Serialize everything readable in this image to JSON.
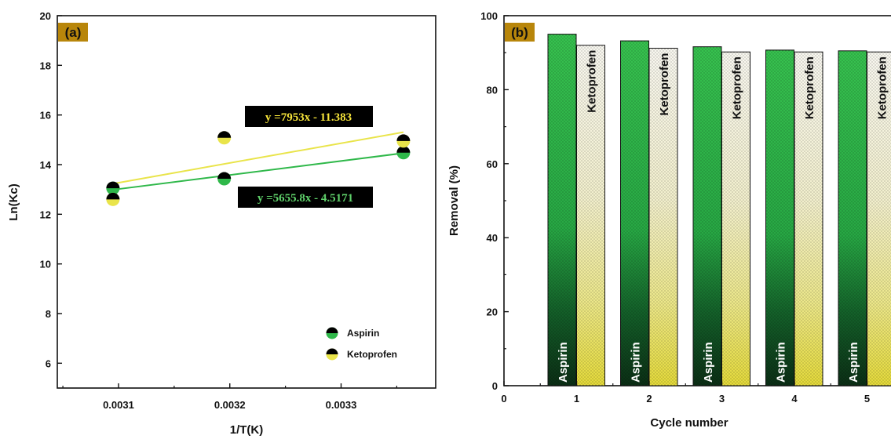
{
  "colors": {
    "aspirin": "#2fb84a",
    "aspirin_dark": "#0e3b1c",
    "ketoprofen": "#e9e44a",
    "ketoprofen_light": "#f3f1dc",
    "eq_yellow_text": "#f5e33a",
    "eq_green_text": "#5fd06a",
    "panel_label_bg": "#b8860b"
  },
  "chart_data": [
    {
      "type": "scatter",
      "panel_label": "(a)",
      "xlabel": "1/T(K)",
      "ylabel": "Ln(Kc)",
      "xlim": [
        0.003045,
        0.003385
      ],
      "ylim": [
        5,
        20
      ],
      "xticks": [
        0.0031,
        0.0032,
        0.0033
      ],
      "xtick_labels": [
        "0.0031",
        "0.0032",
        "0.0033"
      ],
      "yticks": [
        6,
        8,
        10,
        12,
        14,
        16,
        18,
        20
      ],
      "ytick_labels": [
        "6",
        "8",
        "10",
        "12",
        "14",
        "16",
        "18",
        "20"
      ],
      "series": [
        {
          "name": "Aspirin",
          "x": [
            0.003095,
            0.003195,
            0.003356
          ],
          "y": [
            13.05,
            13.43,
            14.48
          ],
          "fit": {
            "label": "y =5655.8x - 4.5171",
            "slope": 5655.8,
            "intercept": -4.5171
          }
        },
        {
          "name": "Ketoprofen",
          "x": [
            0.003095,
            0.003195,
            0.003356
          ],
          "y": [
            12.6,
            15.08,
            14.95
          ],
          "fit": {
            "label": "y =7953x - 11.383",
            "slope": 7953,
            "intercept": -11.383
          }
        }
      ],
      "legend": "bottom-right",
      "grid": false
    },
    {
      "type": "bar",
      "panel_label": "(b)",
      "xlabel": "Cycle number",
      "ylabel": "Removal (%)",
      "categories": [
        "1",
        "2",
        "3",
        "4",
        "5"
      ],
      "xticks": [
        0,
        1,
        2,
        3,
        4,
        5
      ],
      "xtick_labels": [
        "0",
        "1",
        "2",
        "3",
        "4",
        "5"
      ],
      "yticks": [
        0,
        20,
        40,
        60,
        80,
        100
      ],
      "ytick_labels": [
        "0",
        "20",
        "40",
        "60",
        "80",
        "100"
      ],
      "ylim": [
        0,
        100
      ],
      "series": [
        {
          "name": "Aspirin",
          "values": [
            95.0,
            93.2,
            91.6,
            90.7,
            90.5
          ]
        },
        {
          "name": "Ketoprofen",
          "values": [
            92.0,
            91.2,
            90.2,
            90.2,
            90.2
          ]
        }
      ],
      "bar_labels": [
        "Aspirin",
        "Ketoprofen"
      ],
      "grid": false
    }
  ]
}
